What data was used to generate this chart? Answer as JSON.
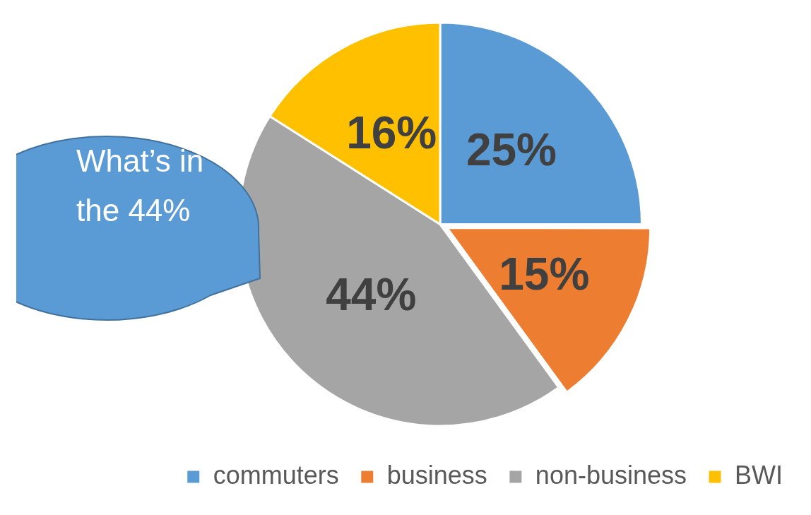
{
  "chart_data": {
    "type": "pie",
    "categories": [
      "commuters",
      "business",
      "non-business",
      "BWI"
    ],
    "values": [
      25,
      15,
      44,
      16
    ],
    "colors": [
      "#5b9bd5",
      "#ed7d31",
      "#a5a5a5",
      "#ffc000"
    ],
    "value_labels": [
      "25%",
      "15%",
      "44%",
      "16%"
    ],
    "legend": "bottom right",
    "annotations": [
      "What’s in the 44%"
    ]
  }
}
